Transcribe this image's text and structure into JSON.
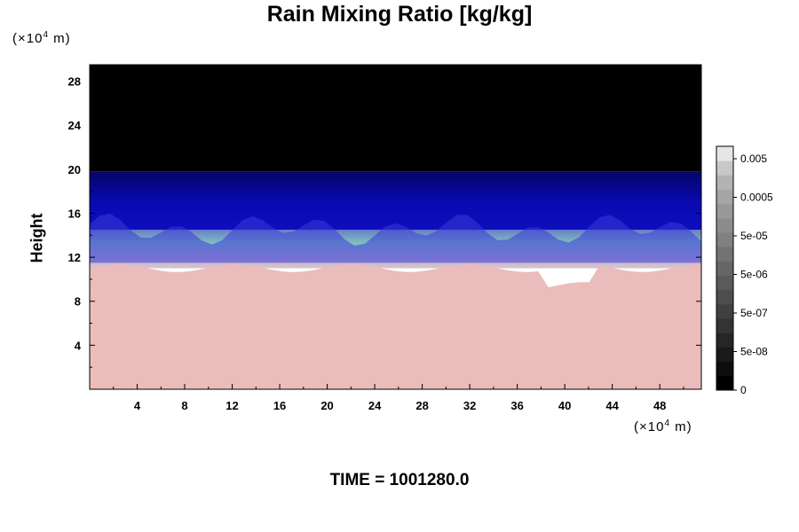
{
  "chart_data": {
    "type": "heatmap",
    "title": "Rain Mixing Ratio [kg/kg]",
    "ylabel": "Height",
    "xlabel": "",
    "y_unit": {
      "prefix": "(×10",
      "exp": "4",
      "suffix": " m)"
    },
    "x_unit": {
      "prefix": "(×10",
      "exp": "4",
      "suffix": " m)"
    },
    "xlim": [
      0,
      51.5
    ],
    "ylim": [
      0,
      29.5
    ],
    "x_ticks": [
      4,
      8,
      12,
      16,
      20,
      24,
      28,
      32,
      36,
      40,
      44,
      48
    ],
    "y_ticks": [
      4,
      8,
      12,
      16,
      20,
      24,
      28
    ],
    "colorbar": {
      "labels": [
        "0.005",
        "0.0005",
        "5e-05",
        "5e-06",
        "5e-07",
        "5e-08",
        "0"
      ],
      "levels": 17,
      "colors": [
        "#000000",
        "#0d0d0d",
        "#1a1a1a",
        "#262626",
        "#333333",
        "#404040",
        "#4d4d4d",
        "#5a5a5a",
        "#666666",
        "#737373",
        "#808080",
        "#8c8c8c",
        "#999999",
        "#a6a6a6",
        "#b3b3b3",
        "#c8c8c8",
        "#e6e6e6"
      ]
    },
    "regions": [
      {
        "name": "top",
        "y_from": 19.8,
        "y_to": 29.5,
        "color": "#000000"
      },
      {
        "name": "upper",
        "y_from": 14.5,
        "y_to": 19.8,
        "color": "#0a0ab0"
      },
      {
        "name": "middle",
        "y_from": 11.5,
        "y_to": 14.5,
        "color": "#b5b0c8"
      },
      {
        "name": "lower",
        "y_from": 0,
        "y_to": 11.0,
        "color": "#ebbcbc"
      }
    ]
  },
  "footer": {
    "time_label": "TIME = 1001280.0"
  }
}
